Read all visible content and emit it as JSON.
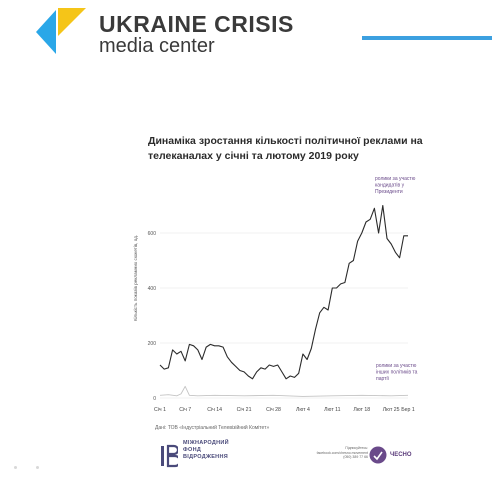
{
  "header": {
    "logo_main": "UKRAINE CRISIS",
    "logo_sub": "media center",
    "accent_color": "#3ca0e0",
    "logo_colors": [
      "#f5c518",
      "#2aa7e8"
    ]
  },
  "chart_data": {
    "type": "line",
    "title": "Динаміка зростання кількості політичної реклами на телеканалах у січні та лютому 2019 року",
    "ylabel": "Кількість показів рекламних сюжетів, од.",
    "xlabel": "",
    "ylim": [
      0,
      800
    ],
    "yticks": [
      0,
      200,
      400,
      600
    ],
    "grid": true,
    "x_ticks": [
      "Сiч 1",
      "Сiч 7",
      "Сiч 14",
      "Сiч 21",
      "Сiч 28",
      "Лют 4",
      "Лют 11",
      "Лют 18",
      "Лют 25",
      "Бер 1"
    ],
    "x_start": "2019-01-01",
    "x_end": "2019-03-01",
    "series": [
      {
        "name": "ролики за участю кандидатів у Президенти",
        "color": "#2b2b2b",
        "x": [
          "2019-01-01",
          "2019-01-02",
          "2019-01-03",
          "2019-01-04",
          "2019-01-05",
          "2019-01-06",
          "2019-01-07",
          "2019-01-08",
          "2019-01-09",
          "2019-01-10",
          "2019-01-11",
          "2019-01-12",
          "2019-01-13",
          "2019-01-14",
          "2019-01-15",
          "2019-01-16",
          "2019-01-17",
          "2019-01-18",
          "2019-01-19",
          "2019-01-20",
          "2019-01-21",
          "2019-01-22",
          "2019-01-23",
          "2019-01-24",
          "2019-01-25",
          "2019-01-26",
          "2019-01-27",
          "2019-01-28",
          "2019-01-29",
          "2019-01-30",
          "2019-01-31",
          "2019-02-01",
          "2019-02-02",
          "2019-02-03",
          "2019-02-04",
          "2019-02-05",
          "2019-02-06",
          "2019-02-07",
          "2019-02-08",
          "2019-02-09",
          "2019-02-10",
          "2019-02-11",
          "2019-02-12",
          "2019-02-13",
          "2019-02-14",
          "2019-02-15",
          "2019-02-16",
          "2019-02-17",
          "2019-02-18",
          "2019-02-19",
          "2019-02-20",
          "2019-02-21",
          "2019-02-22",
          "2019-02-23",
          "2019-02-24",
          "2019-02-25",
          "2019-02-26",
          "2019-02-27",
          "2019-02-28",
          "2019-03-01"
        ],
        "values": [
          120,
          105,
          110,
          175,
          160,
          170,
          135,
          195,
          190,
          175,
          140,
          185,
          195,
          190,
          190,
          185,
          150,
          130,
          115,
          100,
          95,
          80,
          70,
          95,
          110,
          105,
          120,
          115,
          120,
          95,
          70,
          80,
          75,
          90,
          160,
          140,
          180,
          250,
          310,
          330,
          320,
          400,
          400,
          415,
          420,
          490,
          500,
          570,
          600,
          640,
          650,
          690,
          600,
          700,
          580,
          560,
          530,
          510,
          590,
          590
        ]
      },
      {
        "name": "ролики за участю інших політиків та партій",
        "color": "#c4c4c4",
        "x": [
          "2019-01-01",
          "2019-01-03",
          "2019-01-05",
          "2019-01-06",
          "2019-01-07",
          "2019-01-08",
          "2019-01-10",
          "2019-01-14",
          "2019-01-21",
          "2019-01-28",
          "2019-02-04",
          "2019-02-11",
          "2019-02-18",
          "2019-02-25",
          "2019-03-01"
        ],
        "values": [
          10,
          12,
          8,
          15,
          42,
          10,
          8,
          10,
          8,
          10,
          6,
          8,
          10,
          8,
          10
        ]
      }
    ],
    "annotations": [
      {
        "text": "ролики за участю кандидатів у Президенти",
        "series": 0
      },
      {
        "text": "ролики за участю інших політиків та партії",
        "series": 1
      }
    ]
  },
  "footer": {
    "source": "Дані: ТОВ «Індустріальний Телевізійний Комітет»",
    "irf_lines": [
      "МІЖНАРОДНИЙ",
      "ФОНД",
      "ВІДРОДЖЕННЯ"
    ],
    "irf_color": "#4a4a7a",
    "chesno_small": [
      "Підписуйтесь:",
      "facebook.com/chesno.movement",
      "(050) 389 77 66"
    ],
    "chesno_name": "ЧЕСНО",
    "chesno_color": "#5a3a7a"
  }
}
